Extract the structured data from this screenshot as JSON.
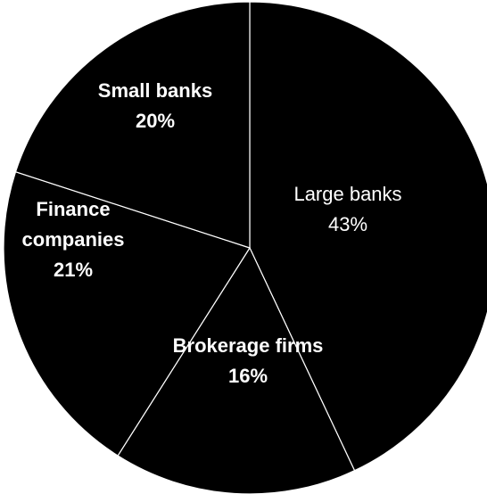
{
  "chart_data": {
    "type": "pie",
    "title": "",
    "slices": [
      {
        "label_lines": [
          "Large banks"
        ],
        "value": 43,
        "value_label": "43%"
      },
      {
        "label_lines": [
          "Brokerage firms"
        ],
        "value": 16,
        "value_label": "16%"
      },
      {
        "label_lines": [
          "Finance",
          "companies"
        ],
        "value": 21,
        "value_label": "21%"
      },
      {
        "label_lines": [
          "Small banks"
        ],
        "value": 20,
        "value_label": "20%"
      }
    ],
    "start_angle_deg": 0,
    "direction": "clockwise",
    "legend": "none",
    "colors": {
      "slice_fill": "#000000",
      "slice_border": "#ffffff",
      "label_text": "#ffffff"
    }
  }
}
